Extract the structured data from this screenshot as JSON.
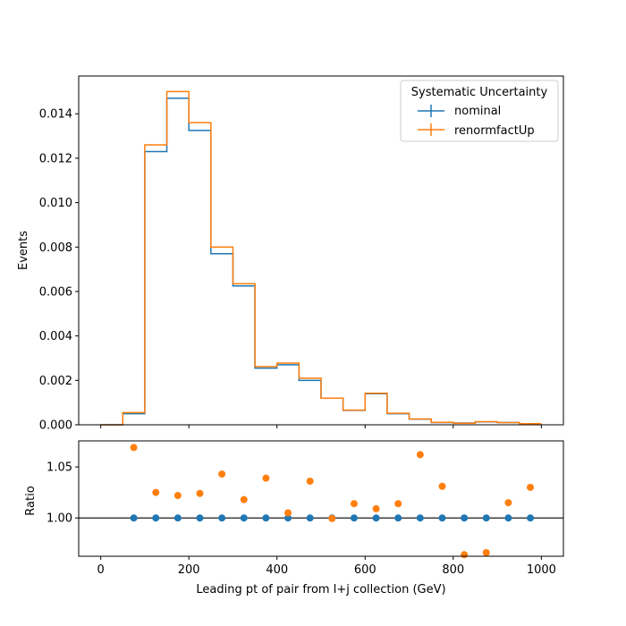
{
  "chart_data": {
    "type": "step-histogram-with-ratio",
    "top_panel": {
      "ylabel": "Events",
      "xlim": [
        -50,
        1050
      ],
      "ylim": [
        0,
        0.0157
      ],
      "yticks": [
        0.0,
        0.002,
        0.004,
        0.006,
        0.008,
        0.01,
        0.012,
        0.014
      ],
      "ytick_labels": [
        "0.000",
        "0.002",
        "0.004",
        "0.006",
        "0.008",
        "0.010",
        "0.012",
        "0.014"
      ],
      "bin_edges": [
        0,
        50,
        100,
        150,
        200,
        250,
        300,
        350,
        400,
        450,
        500,
        550,
        600,
        650,
        700,
        750,
        800,
        850,
        900,
        950,
        1000
      ],
      "series": [
        {
          "name": "nominal",
          "color": "#1f77b4",
          "values": [
            0.0,
            0.0005,
            0.0123,
            0.0147,
            0.01325,
            0.0077,
            0.00625,
            0.00255,
            0.0027,
            0.002,
            0.0012,
            0.00065,
            0.0014,
            0.0005,
            0.00025,
            0.0001,
            8e-05,
            0.00013,
            0.0001,
            5e-05
          ]
        },
        {
          "name": "renormfactUp",
          "color": "#ff7f0e",
          "values": [
            0.0,
            0.00055,
            0.0126,
            0.015,
            0.0136,
            0.008,
            0.00635,
            0.00262,
            0.00278,
            0.0021,
            0.0012,
            0.00066,
            0.00142,
            0.00052,
            0.00026,
            0.00011,
            7e-05,
            0.00014,
            0.0001,
            5e-05
          ]
        }
      ],
      "legend": {
        "title": "Systematic Uncertainty",
        "position": "top-right",
        "entries": [
          "nominal",
          "renormfactUp"
        ]
      }
    },
    "bottom_panel": {
      "ylabel": "Ratio",
      "xlabel": "Leading pt of pair from l+j collection (GeV)",
      "xlim": [
        -50,
        1050
      ],
      "ylim": [
        0.9625,
        1.0755
      ],
      "yticks": [
        1.0,
        1.05
      ],
      "ytick_labels": [
        "1.00",
        "1.05"
      ],
      "xticks": [
        0,
        200,
        400,
        600,
        800,
        1000
      ],
      "xtick_labels": [
        "0",
        "200",
        "400",
        "600",
        "800",
        "1000"
      ],
      "reference_line": 1.0,
      "x": [
        75,
        125,
        175,
        225,
        275,
        325,
        375,
        425,
        475,
        525,
        575,
        625,
        675,
        725,
        775,
        825,
        875,
        925,
        975
      ],
      "series": [
        {
          "name": "nominal",
          "color": "#1f77b4",
          "values": [
            1.0,
            1.0,
            1.0,
            1.0,
            1.0,
            1.0,
            1.0,
            1.0,
            1.0,
            1.0,
            1.0,
            1.0,
            1.0,
            1.0,
            1.0,
            1.0,
            1.0,
            1.0,
            1.0
          ]
        },
        {
          "name": "renormfactUp",
          "color": "#ff7f0e",
          "values": [
            1.069,
            1.025,
            1.022,
            1.024,
            1.043,
            1.018,
            1.039,
            1.005,
            1.036,
            0.9995,
            1.014,
            1.009,
            1.014,
            1.062,
            1.031,
            0.964,
            0.966,
            1.015,
            1.03
          ]
        }
      ]
    }
  }
}
